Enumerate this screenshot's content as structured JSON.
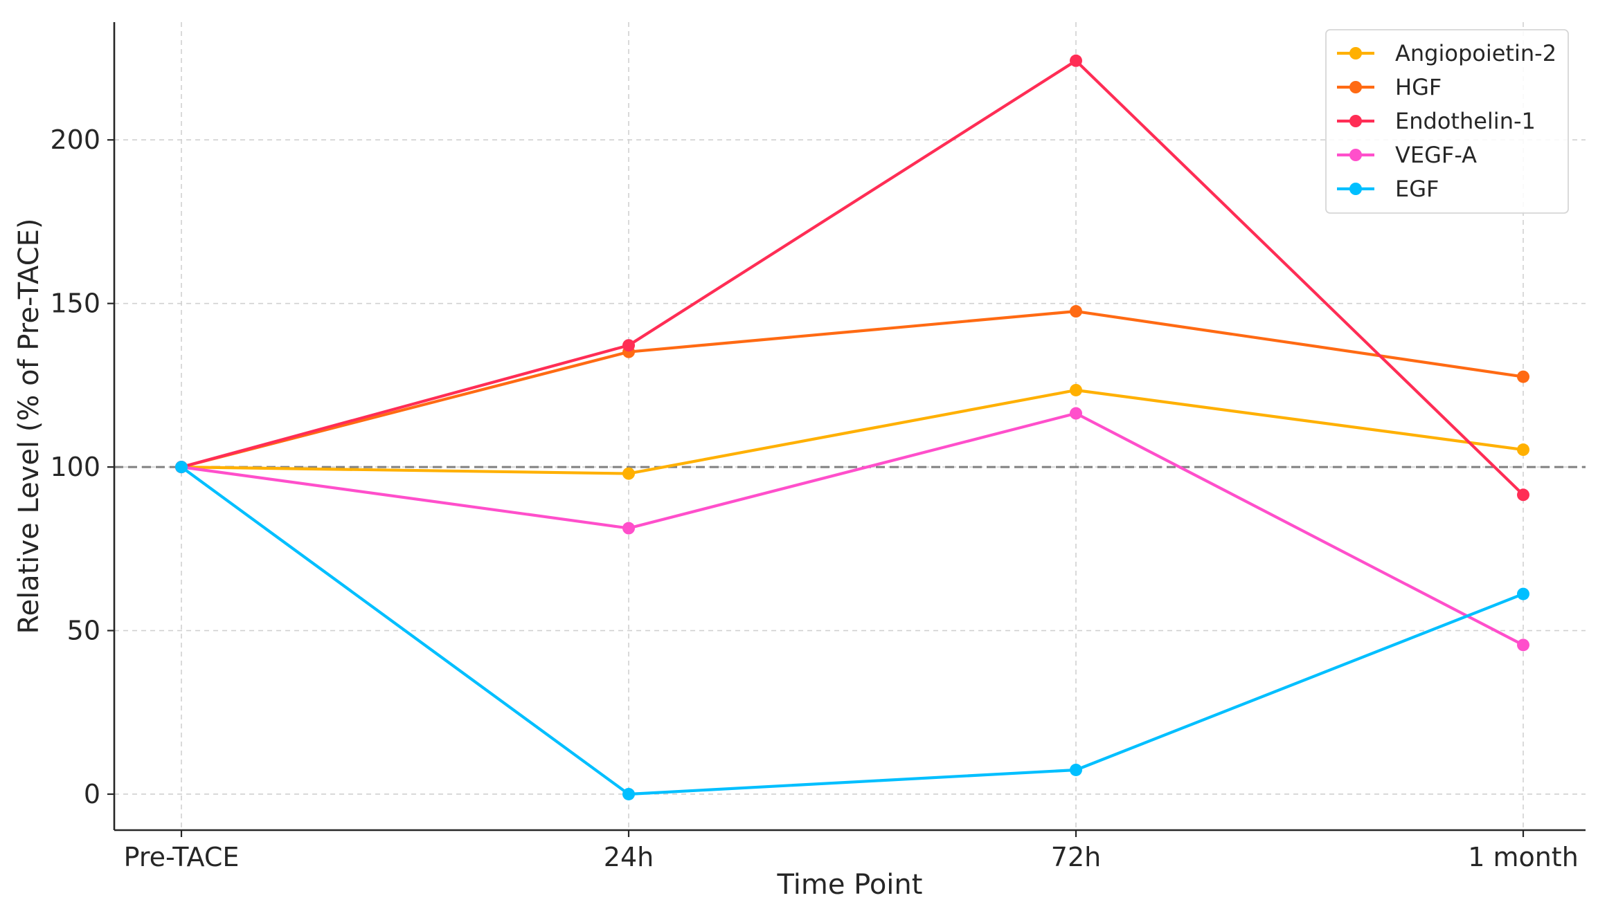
{
  "chart_data": {
    "type": "line",
    "title": "",
    "xlabel": "Time Point",
    "ylabel": "Relative Level (% of Pre-TACE)",
    "categories": [
      "Pre-TACE",
      "24h",
      "72h",
      "1 month"
    ],
    "ylim": [
      -11,
      236
    ],
    "yticks": [
      0,
      50,
      100,
      150,
      200
    ],
    "grid": true,
    "legend_position": "top-right",
    "reference_line": {
      "y": 100,
      "style": "dashed",
      "color": "#808080"
    },
    "series": [
      {
        "name": "Angiopoietin-2",
        "color": "#FFB000",
        "values": [
          100,
          98,
          123.5,
          105.3
        ]
      },
      {
        "name": "HGF",
        "color": "#FF6A13",
        "values": [
          100,
          135.2,
          147.6,
          127.6
        ]
      },
      {
        "name": "Endothelin-1",
        "color": "#FF2D55",
        "values": [
          100,
          137.2,
          224.2,
          91.5
        ]
      },
      {
        "name": "VEGF-A",
        "color": "#FF4FCB",
        "values": [
          100,
          81.3,
          116.4,
          45.6
        ]
      },
      {
        "name": "EGF",
        "color": "#00BFFF",
        "values": [
          100,
          0,
          7.4,
          61.2
        ]
      }
    ]
  }
}
